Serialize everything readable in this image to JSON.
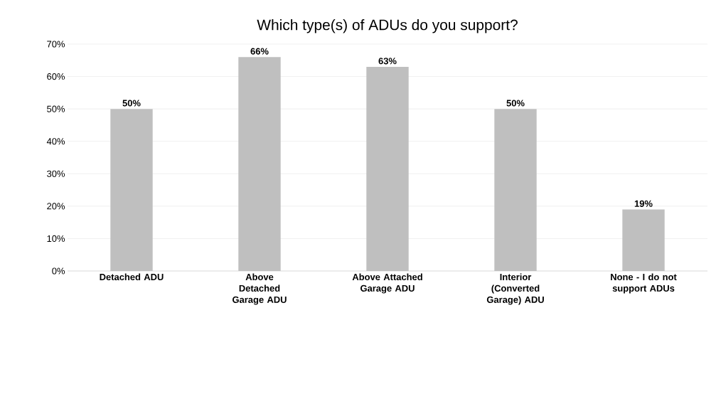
{
  "chart_data": {
    "type": "bar",
    "title": "Which type(s) of ADUs do you support?",
    "categories": [
      "Detached ADU",
      "Above Detached Garage ADU",
      "Above Attached Garage ADU",
      "Interior (Converted Garage) ADU",
      "None - I do not support ADUs"
    ],
    "values": [
      50,
      66,
      63,
      50,
      19
    ],
    "value_labels": [
      "50%",
      "66%",
      "63%",
      "50%",
      "19%"
    ],
    "color": "#bfbfbf",
    "ylim": [
      0,
      70
    ],
    "yticks": [
      {
        "value": 0,
        "label": "0%"
      },
      {
        "value": 10,
        "label": "10%"
      },
      {
        "value": 20,
        "label": "20%"
      },
      {
        "value": 30,
        "label": "30%"
      },
      {
        "value": 40,
        "label": "40%"
      },
      {
        "value": 50,
        "label": "50%"
      },
      {
        "value": 60,
        "label": "60%"
      },
      {
        "value": 70,
        "label": "70%"
      }
    ],
    "grid": "y"
  }
}
